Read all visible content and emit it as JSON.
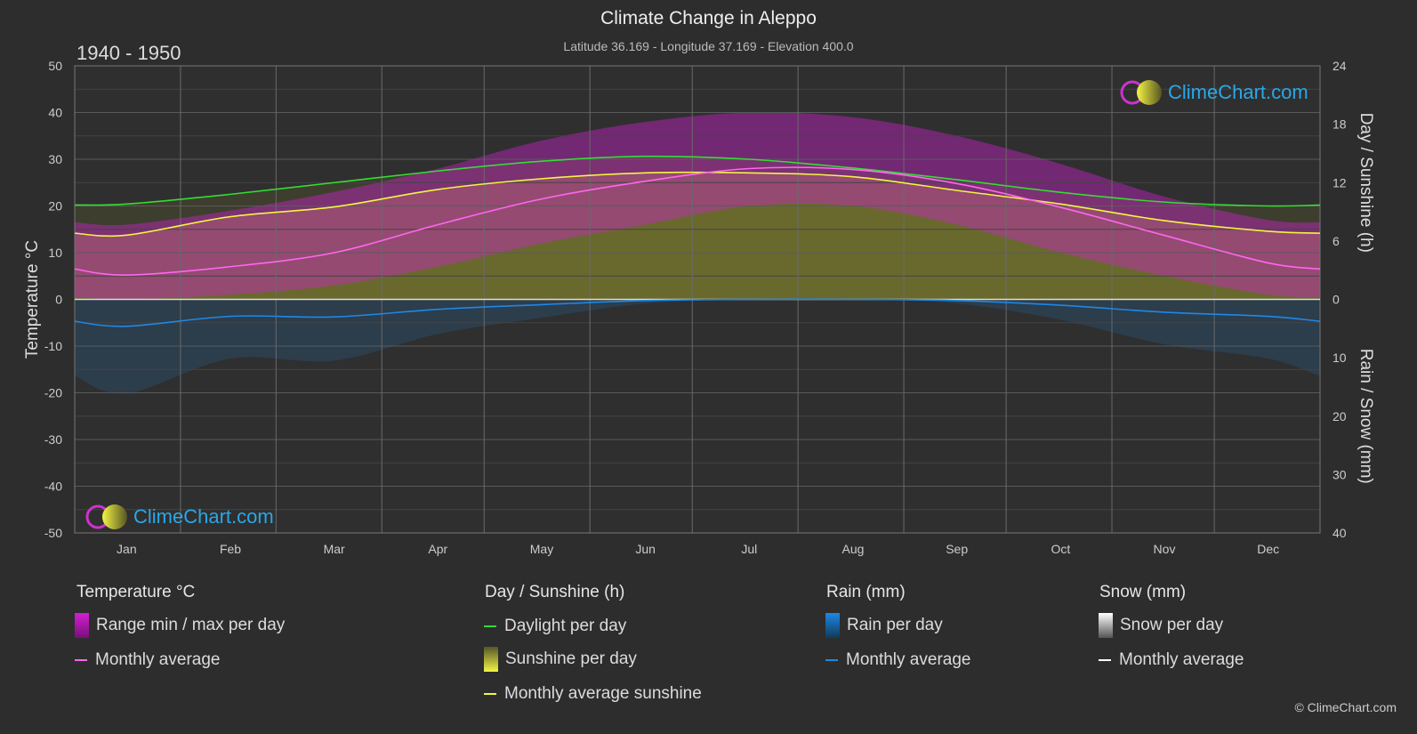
{
  "header": {
    "title": "Climate Change in Aleppo",
    "subtitle": "Latitude 36.169 - Longitude 37.169 - Elevation 400.0",
    "period": "1940 - 1950"
  },
  "logo_text": "ClimeChart.com",
  "copyright": "© ClimeChart.com",
  "chart_data": {
    "type": "area",
    "categories": [
      "Jan",
      "Feb",
      "Mar",
      "Apr",
      "May",
      "Jun",
      "Jul",
      "Aug",
      "Sep",
      "Oct",
      "Nov",
      "Dec"
    ],
    "axes": {
      "left": {
        "label": "Temperature °C",
        "range": [
          -50,
          50
        ],
        "ticks": [
          50,
          40,
          30,
          20,
          10,
          0,
          -10,
          -20,
          -30,
          -40,
          -50
        ]
      },
      "right_top": {
        "label": "Day / Sunshine (h)",
        "range": [
          0,
          24
        ],
        "ticks": [
          24,
          18,
          12,
          6,
          0
        ]
      },
      "right_bottom": {
        "label": "Rain / Snow (mm)",
        "range": [
          0,
          40
        ],
        "ticks": [
          0,
          10,
          20,
          30,
          40
        ]
      }
    },
    "grid": true,
    "series": {
      "temp_max_daily": [
        16,
        19,
        23,
        28,
        34,
        38,
        40,
        39,
        35,
        29,
        22,
        17
      ],
      "temp_min_daily": [
        0,
        1,
        3,
        7,
        12,
        16,
        20,
        20,
        16,
        10,
        5,
        1
      ],
      "temp_monthly_avg": [
        5.2,
        7.0,
        10.0,
        16.0,
        21.5,
        25.3,
        28.0,
        27.8,
        24.8,
        19.7,
        13.7,
        7.8
      ],
      "daylight_h": [
        9.8,
        10.8,
        12.0,
        13.2,
        14.2,
        14.7,
        14.4,
        13.5,
        12.3,
        11.0,
        10.0,
        9.6
      ],
      "sunshine_monthly_avg_h": [
        6.6,
        8.5,
        9.5,
        11.3,
        12.4,
        13.0,
        13.0,
        12.6,
        11.2,
        9.8,
        8.1,
        7.0
      ],
      "rain_monthly_avg_mm": [
        4.6,
        2.9,
        3.0,
        1.7,
        0.9,
        0.2,
        0.0,
        0.0,
        0.2,
        1.0,
        2.2,
        2.9
      ],
      "snow_monthly_avg_mm": [
        0,
        0,
        0,
        0,
        0,
        0,
        0,
        0,
        0,
        0,
        0,
        0
      ]
    },
    "colors": {
      "temp_range": "#d21fd2",
      "temp_avg": "#ff66ee",
      "daylight": "#33dd33",
      "sunshine_fill": "#b8b82a",
      "sunshine_avg": "#f4f444",
      "rain": "#1e88e5",
      "snow": "#ffffff"
    }
  },
  "legend": {
    "temperature": {
      "title": "Temperature °C",
      "range": "Range min / max per day",
      "avg": "Monthly average"
    },
    "sun": {
      "title": "Day / Sunshine (h)",
      "daylight": "Daylight per day",
      "sunshine": "Sunshine per day",
      "avg": "Monthly average sunshine"
    },
    "rain": {
      "title": "Rain (mm)",
      "per_day": "Rain per day",
      "avg": "Monthly average"
    },
    "snow": {
      "title": "Snow (mm)",
      "per_day": "Snow per day",
      "avg": "Monthly average"
    }
  }
}
